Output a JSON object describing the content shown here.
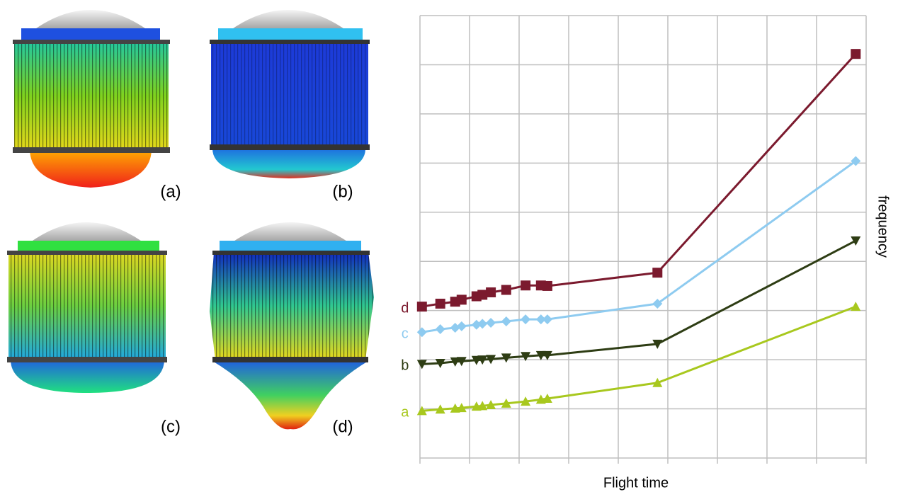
{
  "panels": [
    "(a)",
    "(b)",
    "(c)",
    "(d)"
  ],
  "chart_data": {
    "type": "line",
    "xlabel": "Flight time",
    "ylabel": "frequency",
    "x": [
      0.04,
      0.41,
      0.71,
      0.84,
      1.14,
      1.26,
      1.43,
      1.74,
      2.13,
      2.44,
      2.57,
      4.79,
      8.79
    ],
    "xlim": [
      0,
      9
    ],
    "ylim": [
      0,
      9
    ],
    "xticks": [
      0,
      1,
      2,
      3,
      4,
      5,
      6,
      7,
      8,
      9
    ],
    "yticks": [
      0,
      1,
      2,
      3,
      4,
      5,
      6,
      7,
      8,
      9
    ],
    "grid": true,
    "series": [
      {
        "name": "d",
        "color": "#7b1a2e",
        "marker": "square",
        "values": [
          3.08,
          3.14,
          3.18,
          3.22,
          3.29,
          3.32,
          3.37,
          3.42,
          3.51,
          3.51,
          3.5,
          3.77,
          8.22
        ]
      },
      {
        "name": "c",
        "color": "#8ecbf0",
        "marker": "diamond",
        "values": [
          2.56,
          2.62,
          2.65,
          2.68,
          2.71,
          2.73,
          2.75,
          2.78,
          2.82,
          2.82,
          2.82,
          3.14,
          6.04
        ]
      },
      {
        "name": "b",
        "color": "#2e3d14",
        "marker": "triangle-down",
        "values": [
          1.91,
          1.93,
          1.96,
          1.97,
          1.99,
          2.0,
          2.01,
          2.04,
          2.07,
          2.09,
          2.09,
          2.32,
          4.42
        ]
      },
      {
        "name": "a",
        "color": "#a8c81e",
        "marker": "triangle-up",
        "values": [
          0.96,
          0.99,
          1.01,
          1.02,
          1.05,
          1.06,
          1.08,
          1.11,
          1.15,
          1.19,
          1.21,
          1.53,
          3.08
        ]
      }
    ]
  }
}
